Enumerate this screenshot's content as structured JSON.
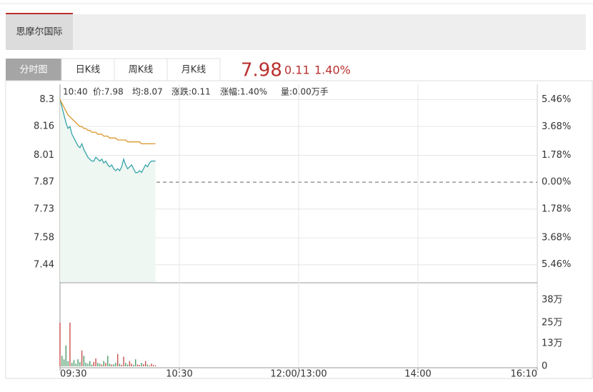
{
  "top_tab": "思摩尔国际",
  "tabs": [
    "分时图",
    "日K线",
    "周K线",
    "月K线"
  ],
  "quote": {
    "price": "7.98",
    "change": "0.11",
    "change_pct": "1.40%"
  },
  "info": {
    "time": "10:40",
    "price": "价:7.98",
    "avg": "均:8.07",
    "change": "涨跌:0.11",
    "change_pct": "涨幅:1.40%",
    "volume": "量:0.00万手"
  },
  "chart_data": [
    {
      "type": "line",
      "x": [
        0,
        1,
        2,
        3,
        4,
        5,
        6,
        7,
        8,
        9,
        10,
        11,
        12,
        13,
        14,
        15,
        16,
        17,
        18,
        19,
        20,
        21,
        22,
        23,
        24,
        25,
        26,
        27,
        28,
        29,
        30,
        31,
        32,
        33,
        34,
        35,
        36,
        37,
        38,
        39,
        40,
        41,
        42,
        43,
        44,
        45,
        46,
        47,
        48
      ],
      "xlim": [
        0,
        240
      ],
      "ylim": [
        7.35,
        8.38
      ],
      "yticks": [
        8.3,
        8.16,
        8.01,
        7.87,
        7.73,
        7.58,
        7.44
      ],
      "y2lim": [
        -6.61,
        6.48
      ],
      "y2ticks": [
        {
          "value": 5.46,
          "label": "5.46%"
        },
        {
          "value": 3.68,
          "label": "3.68%"
        },
        {
          "value": 1.78,
          "label": "1.78%"
        },
        {
          "value": 0,
          "label": "0.00%"
        },
        {
          "value": -1.78,
          "label": "1.78%"
        },
        {
          "value": -3.68,
          "label": "3.68%"
        },
        {
          "value": -5.46,
          "label": "5.46%"
        }
      ],
      "prev_close": 7.87,
      "grid": true,
      "area_color": "#eef7f1",
      "up_color": "#c0392b",
      "down_color": "#3d8a5c",
      "flat_color": "#777777",
      "series": [
        {
          "color": "#3aa3ab",
          "values": [
            8.3,
            8.26,
            8.22,
            8.18,
            8.15,
            8.16,
            8.12,
            8.1,
            8.08,
            8.06,
            8.05,
            8.07,
            8.04,
            8.02,
            8.0,
            7.99,
            7.98,
            7.98,
            8.0,
            7.99,
            7.98,
            7.99,
            7.97,
            7.98,
            7.96,
            7.95,
            7.96,
            7.94,
            7.93,
            7.94,
            7.93,
            7.95,
            7.99,
            7.96,
            7.94,
            7.95,
            7.96,
            7.94,
            7.92,
            7.92,
            7.93,
            7.92,
            7.94,
            7.96,
            7.95,
            7.97,
            7.98,
            7.98,
            7.98
          ]
        },
        {
          "color": "#d9962a",
          "values": [
            8.3,
            8.28,
            8.26,
            8.24,
            8.22,
            8.21,
            8.2,
            8.19,
            8.18,
            8.17,
            8.16,
            8.16,
            8.15,
            8.15,
            8.14,
            8.14,
            8.13,
            8.13,
            8.13,
            8.12,
            8.12,
            8.12,
            8.11,
            8.11,
            8.11,
            8.1,
            8.1,
            8.1,
            8.1,
            8.09,
            8.09,
            8.09,
            8.09,
            8.09,
            8.08,
            8.08,
            8.08,
            8.08,
            8.08,
            8.08,
            8.08,
            8.07,
            8.07,
            8.07,
            8.07,
            8.07,
            8.07,
            8.07,
            8.07
          ]
        }
      ]
    },
    {
      "type": "bar",
      "x": [
        0,
        1,
        2,
        3,
        4,
        5,
        6,
        7,
        8,
        9,
        10,
        11,
        12,
        13,
        14,
        15,
        16,
        17,
        18,
        19,
        20,
        21,
        22,
        23,
        24,
        25,
        26,
        27,
        28,
        29,
        30,
        31,
        32,
        33,
        34,
        35,
        36,
        37,
        38,
        39,
        40,
        41,
        42,
        43,
        44,
        45,
        46,
        47,
        48
      ],
      "xlim": [
        0,
        240
      ],
      "xticks": [
        {
          "value": 0,
          "label": "09:30"
        },
        {
          "value": 60,
          "label": "10:30"
        },
        {
          "value": 120,
          "label": "12:00/13:00"
        },
        {
          "value": 180,
          "label": "14:00"
        },
        {
          "value": 240,
          "label": "16:10"
        }
      ],
      "ylim": [
        0,
        474000
      ],
      "yticks": [
        {
          "value": 380000,
          "label": "38万"
        },
        {
          "value": 250000,
          "label": "25万"
        },
        {
          "value": 130000,
          "label": "13万"
        },
        0
      ],
      "up_color": "#c8504a",
      "down_color": "#4a9a6a",
      "values": [
        250000,
        60000,
        40000,
        120000,
        30000,
        250000,
        20000,
        35000,
        15000,
        40000,
        25000,
        90000,
        60000,
        20000,
        15000,
        30000,
        10000,
        25000,
        45000,
        20000,
        15000,
        10000,
        30000,
        20000,
        60000,
        15000,
        10000,
        12000,
        20000,
        70000,
        15000,
        8000,
        55000,
        20000,
        10000,
        30000,
        15000,
        8000,
        40000,
        10000,
        8000,
        20000,
        12000,
        30000,
        10000,
        5000,
        15000,
        8000,
        5000
      ]
    }
  ]
}
